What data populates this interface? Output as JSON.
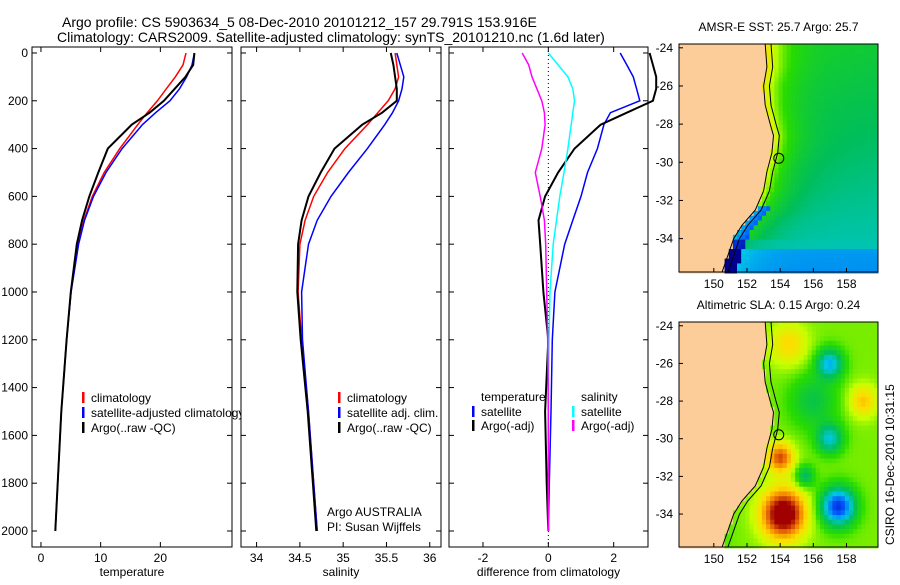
{
  "title": {
    "line1": "Argo profile: CS 5903634_5 08-Dec-2010 20101212_157 29.791S 153.916E",
    "line2": "Climatology: CARS2009. Satellite-adjusted climatology: synTS_20101210.nc (1.6d later)"
  },
  "credit": {
    "agency": "Argo AUSTRALIA",
    "pi": "PI: Susan Wijffels",
    "stamp": "CSIRO 16-Dec-2010 10:31:15"
  },
  "colors": {
    "climatology": "#ff0000",
    "satellite": "#0000ff",
    "argo": "#000000",
    "sal_sat": "#00ffff",
    "sal_argo": "#ff00ff",
    "land": "#fccc99"
  },
  "chart_data": [
    {
      "type": "line",
      "name": "temperature-profile",
      "xlabel": "temperature",
      "ylabel": "",
      "xlim": [
        -1.5,
        32
      ],
      "ylim": [
        2067,
        -25
      ],
      "xticks": [
        0,
        10,
        20
      ],
      "yticks": [
        0,
        200,
        400,
        600,
        800,
        1000,
        1200,
        1400,
        1600,
        1800,
        2000
      ],
      "legend": [
        "climatology",
        "satellite-adjusted climatology",
        "Argo(..raw -QC)"
      ],
      "depth": [
        0,
        50,
        100,
        150,
        200,
        250,
        300,
        400,
        500,
        600,
        700,
        800,
        1000,
        1200,
        1500,
        1800,
        2000
      ],
      "series": [
        {
          "name": "climatology",
          "color": "#ff0000",
          "values": [
            24.3,
            23.8,
            22.5,
            21,
            19.5,
            17.8,
            16.2,
            13.2,
            10.6,
            8.6,
            7.2,
            6.2,
            5.0,
            4.3,
            3.4,
            2.8,
            2.4
          ]
        },
        {
          "name": "satellite-adjusted climatology",
          "color": "#0000ff",
          "values": [
            25.7,
            25.3,
            24.4,
            23.2,
            21.6,
            19.2,
            17,
            13.6,
            10.9,
            8.8,
            7.3,
            6.3,
            5.05,
            4.3,
            3.4,
            2.8,
            2.4
          ]
        },
        {
          "name": "Argo(..raw -QC)",
          "color": "#000000",
          "values": [
            25.7,
            25.5,
            24.2,
            22.4,
            20.6,
            18.2,
            15.2,
            11.2,
            9.6,
            8.1,
            6.9,
            6.0,
            5.0,
            4.3,
            3.4,
            2.8,
            2.4
          ]
        }
      ]
    },
    {
      "type": "line",
      "name": "salinity-profile",
      "xlabel": "salinity",
      "xlim": [
        33.82,
        36.13
      ],
      "ylim": [
        2067,
        -25
      ],
      "xticks": [
        34,
        34.5,
        35,
        35.5,
        36
      ],
      "legend": [
        "climatology",
        "satellite adj. clim.",
        "Argo(..raw -QC)"
      ],
      "depth": [
        0,
        50,
        100,
        150,
        200,
        250,
        300,
        400,
        500,
        600,
        700,
        800,
        1000,
        1200,
        1500,
        1800,
        2000
      ],
      "series": [
        {
          "name": "climatology",
          "color": "#ff0000",
          "values": [
            35.6,
            35.62,
            35.64,
            35.6,
            35.52,
            35.4,
            35.28,
            35.02,
            34.82,
            34.66,
            34.56,
            34.5,
            34.48,
            34.52,
            34.6,
            34.66,
            34.7
          ]
        },
        {
          "name": "satellite adj. clim.",
          "color": "#0000ff",
          "values": [
            35.62,
            35.66,
            35.7,
            35.68,
            35.64,
            35.57,
            35.48,
            35.28,
            35.06,
            34.86,
            34.7,
            34.6,
            34.52,
            34.53,
            34.6,
            34.66,
            34.7
          ]
        },
        {
          "name": "Argo(..raw -QC)",
          "color": "#000000",
          "values": [
            35.55,
            35.58,
            35.6,
            35.62,
            35.62,
            35.45,
            35.22,
            34.9,
            34.74,
            34.6,
            34.52,
            34.48,
            34.47,
            34.51,
            34.59,
            34.65,
            34.69
          ]
        }
      ]
    },
    {
      "type": "line",
      "name": "difference-profile",
      "xlabel": "difference from climatology",
      "xlim": [
        -3.04,
        3.05
      ],
      "ylim": [
        2067,
        -25
      ],
      "xticks": [
        -2,
        0,
        2
      ],
      "legend_groups": [
        {
          "title": "temperature",
          "items": [
            "satellite",
            "Argo(-adj)"
          ]
        },
        {
          "title": "salinity",
          "items": [
            "satellite",
            "Argo(-adj)"
          ]
        }
      ],
      "depth": [
        0,
        50,
        100,
        150,
        200,
        250,
        300,
        400,
        500,
        600,
        700,
        800,
        1000,
        1200,
        1500,
        1800,
        2000
      ],
      "series": [
        {
          "name": "temperature satellite",
          "color": "#0000ff",
          "values": [
            2.2,
            2.4,
            2.6,
            2.7,
            2.8,
            1.9,
            1.7,
            1.5,
            1.2,
            1.0,
            0.75,
            0.5,
            0.2,
            0.12,
            0.08,
            0.03,
            0
          ]
        },
        {
          "name": "temperature Argo(-adj)",
          "color": "#000000",
          "values": [
            3.1,
            3.2,
            3.3,
            3.3,
            3.2,
            2.4,
            1.6,
            0.8,
            0.3,
            -0.1,
            -0.3,
            -0.25,
            -0.15,
            0,
            -0.1,
            -0.05,
            0
          ]
        },
        {
          "name": "salinity satellite",
          "color": "#00ffff",
          "values": [
            0.0,
            0.3,
            0.6,
            0.75,
            0.8,
            0.75,
            0.7,
            0.6,
            0.48,
            0.35,
            0.25,
            0.15,
            0.05,
            0.02,
            0,
            0,
            0
          ]
        },
        {
          "name": "salinity Argo(-adj)",
          "color": "#ff00ff",
          "values": [
            -0.8,
            -0.6,
            -0.5,
            -0.35,
            -0.2,
            -0.12,
            -0.1,
            -0.2,
            -0.4,
            -0.25,
            -0.12,
            -0.08,
            -0.05,
            -0.02,
            0,
            0,
            0
          ]
        }
      ]
    },
    {
      "type": "heatmap",
      "name": "sst-map",
      "title": "AMSR-E SST: 25.7 Argo: 25.7",
      "xlim": [
        147.9,
        159.9
      ],
      "ylim": [
        -35.75,
        -23.8
      ],
      "xticks": [
        150,
        152,
        154,
        156,
        158
      ],
      "yticks": [
        -24,
        -26,
        -28,
        -30,
        -32,
        -34
      ],
      "argo_position": [
        153.916,
        -29.791
      ]
    },
    {
      "type": "heatmap",
      "name": "sla-map",
      "title": "Altimetric SLA: 0.15 Argo: 0.24",
      "xlim": [
        147.9,
        159.9
      ],
      "ylim": [
        -35.75,
        -23.8
      ],
      "xticks": [
        150,
        152,
        154,
        156,
        158
      ],
      "yticks": [
        -24,
        -26,
        -28,
        -30,
        -32,
        -34
      ],
      "argo_position": [
        153.916,
        -29.791
      ]
    }
  ]
}
